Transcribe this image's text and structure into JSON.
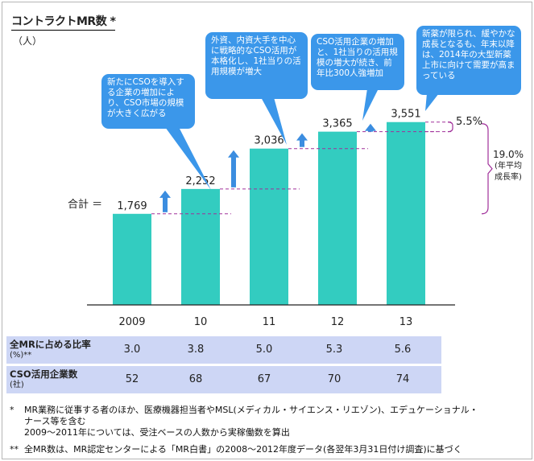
{
  "header": {
    "title": "コントラクトMR数 *",
    "unit": "（人）"
  },
  "total_label": "合計 ＝",
  "chart_data": {
    "type": "bar",
    "categories": [
      "2009",
      "10",
      "11",
      "12",
      "13"
    ],
    "values": [
      1769,
      2252,
      3036,
      3365,
      3551
    ],
    "value_labels": [
      "1,769",
      "2,252",
      "3,036",
      "3,365",
      "3,551"
    ],
    "ylim": [
      0,
      4000
    ],
    "bar_color": "#33ccc0",
    "title": "コントラクトMR数 *",
    "annotations": {
      "latest_growth": "5.5%",
      "cagr": "19.0%",
      "cagr_note_1": "(年平均",
      "cagr_note_2": "成長率)"
    }
  },
  "bubbles": [
    {
      "text": "新たにCSOを導入する企業の増加により、CSO市場の規模が大きく広がる"
    },
    {
      "text": "外資、内資大手を中心に戦略的なCSO活用が本格化し、1社当りの活用規模が増大"
    },
    {
      "text": "CSO活用企業の増加と、1社当りの活用規模の増大が続き、前年比300人強増加"
    },
    {
      "text": "新薬が限られ、緩やかな成長となるも、年末以降は、2014年の大型新薬上市に向けて需要が高まっている"
    }
  ],
  "table": {
    "row1": {
      "label": "全MRに占める比率",
      "sub": "(%)**",
      "values": [
        "3.0",
        "3.8",
        "5.0",
        "5.3",
        "5.6"
      ]
    },
    "row2": {
      "label": "CSO活用企業数",
      "sub": "(社)",
      "values": [
        "52",
        "68",
        "67",
        "70",
        "74"
      ]
    }
  },
  "notes": {
    "n1_mark": "*",
    "n1_line1": "MR業務に従事する者のほか、医療機器担当者やMSL(メディカル・サイエンス・リエゾン)、エデュケーショナル・",
    "n1_line2": "ナース等を含む",
    "n1_line3": "2009〜2011年については、受注ベースの人数から実稼働数を算出",
    "n2_mark": "**",
    "n2_line1": "全MR数は、MR認定センターによる「MR白書」の2008〜2012年度データ(各翌年3月31日付け調査)に基づく"
  },
  "colors": {
    "bubble": "#3b97ea",
    "arrow": "#3b8de0",
    "table_bg": "#cdd6f5",
    "bracket": "#a0309a",
    "guide": "#a0309a"
  }
}
